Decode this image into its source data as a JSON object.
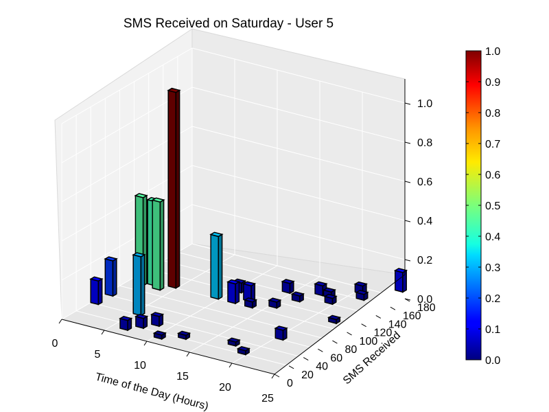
{
  "chart_data": {
    "type": "bar3d",
    "title": "SMS Received on Saturday - User 5",
    "xlabel": "Time of the Day (Hours)",
    "ylabel": "SMS Received",
    "zlabel": "",
    "x_ticks": [
      "0",
      "5",
      "10",
      "15",
      "20",
      "25"
    ],
    "y_ticks": [
      "0",
      "20",
      "40",
      "60",
      "80",
      "100",
      "120",
      "140",
      "160",
      "180"
    ],
    "z_ticks": [
      "0.0",
      "0.2",
      "0.4",
      "0.6",
      "0.8",
      "1.0"
    ],
    "xlim": [
      0,
      25
    ],
    "ylim": [
      0,
      180
    ],
    "zlim": [
      0,
      1
    ],
    "colormap": "jet",
    "colorbar_ticks": [
      "0.0",
      "0.1",
      "0.2",
      "0.3",
      "0.4",
      "0.5",
      "0.6",
      "0.7",
      "0.8",
      "0.9",
      "1.0"
    ],
    "grid": true,
    "bars": [
      {
        "x": 0,
        "y": 60,
        "z": 0.18
      },
      {
        "x": 0,
        "y": 40,
        "z": 0.12
      },
      {
        "x": 1,
        "y": 90,
        "z": 0.45
      },
      {
        "x": 2,
        "y": 95,
        "z": 0.43
      },
      {
        "x": 3,
        "y": 90,
        "z": 0.45
      },
      {
        "x": 4,
        "y": 100,
        "z": 1.0
      },
      {
        "x": 5,
        "y": 40,
        "z": 0.3
      },
      {
        "x": 6,
        "y": 10,
        "z": 0.05
      },
      {
        "x": 7,
        "y": 20,
        "z": 0.05
      },
      {
        "x": 8,
        "y": 30,
        "z": 0.05
      },
      {
        "x": 9,
        "y": 100,
        "z": 0.32
      },
      {
        "x": 10,
        "y": 120,
        "z": 0.05
      },
      {
        "x": 10,
        "y": 10,
        "z": 0.02
      },
      {
        "x": 11,
        "y": 100,
        "z": 0.1
      },
      {
        "x": 12,
        "y": 110,
        "z": 0.08
      },
      {
        "x": 12,
        "y": 20,
        "z": 0.02
      },
      {
        "x": 13,
        "y": 100,
        "z": 0.03
      },
      {
        "x": 14,
        "y": 140,
        "z": 0.05
      },
      {
        "x": 15,
        "y": 110,
        "z": 0.03
      },
      {
        "x": 16,
        "y": 130,
        "z": 0.03
      },
      {
        "x": 17,
        "y": 150,
        "z": 0.05
      },
      {
        "x": 17,
        "y": 30,
        "z": 0.02
      },
      {
        "x": 18,
        "y": 150,
        "z": 0.03
      },
      {
        "x": 19,
        "y": 140,
        "z": 0.03
      },
      {
        "x": 19,
        "y": 20,
        "z": 0.02
      },
      {
        "x": 20,
        "y": 60,
        "z": 0.05
      },
      {
        "x": 20,
        "y": 170,
        "z": 0.04
      },
      {
        "x": 21,
        "y": 160,
        "z": 0.03
      },
      {
        "x": 22,
        "y": 110,
        "z": 0.02
      },
      {
        "x": 23,
        "y": 190,
        "z": 0.1
      }
    ]
  }
}
